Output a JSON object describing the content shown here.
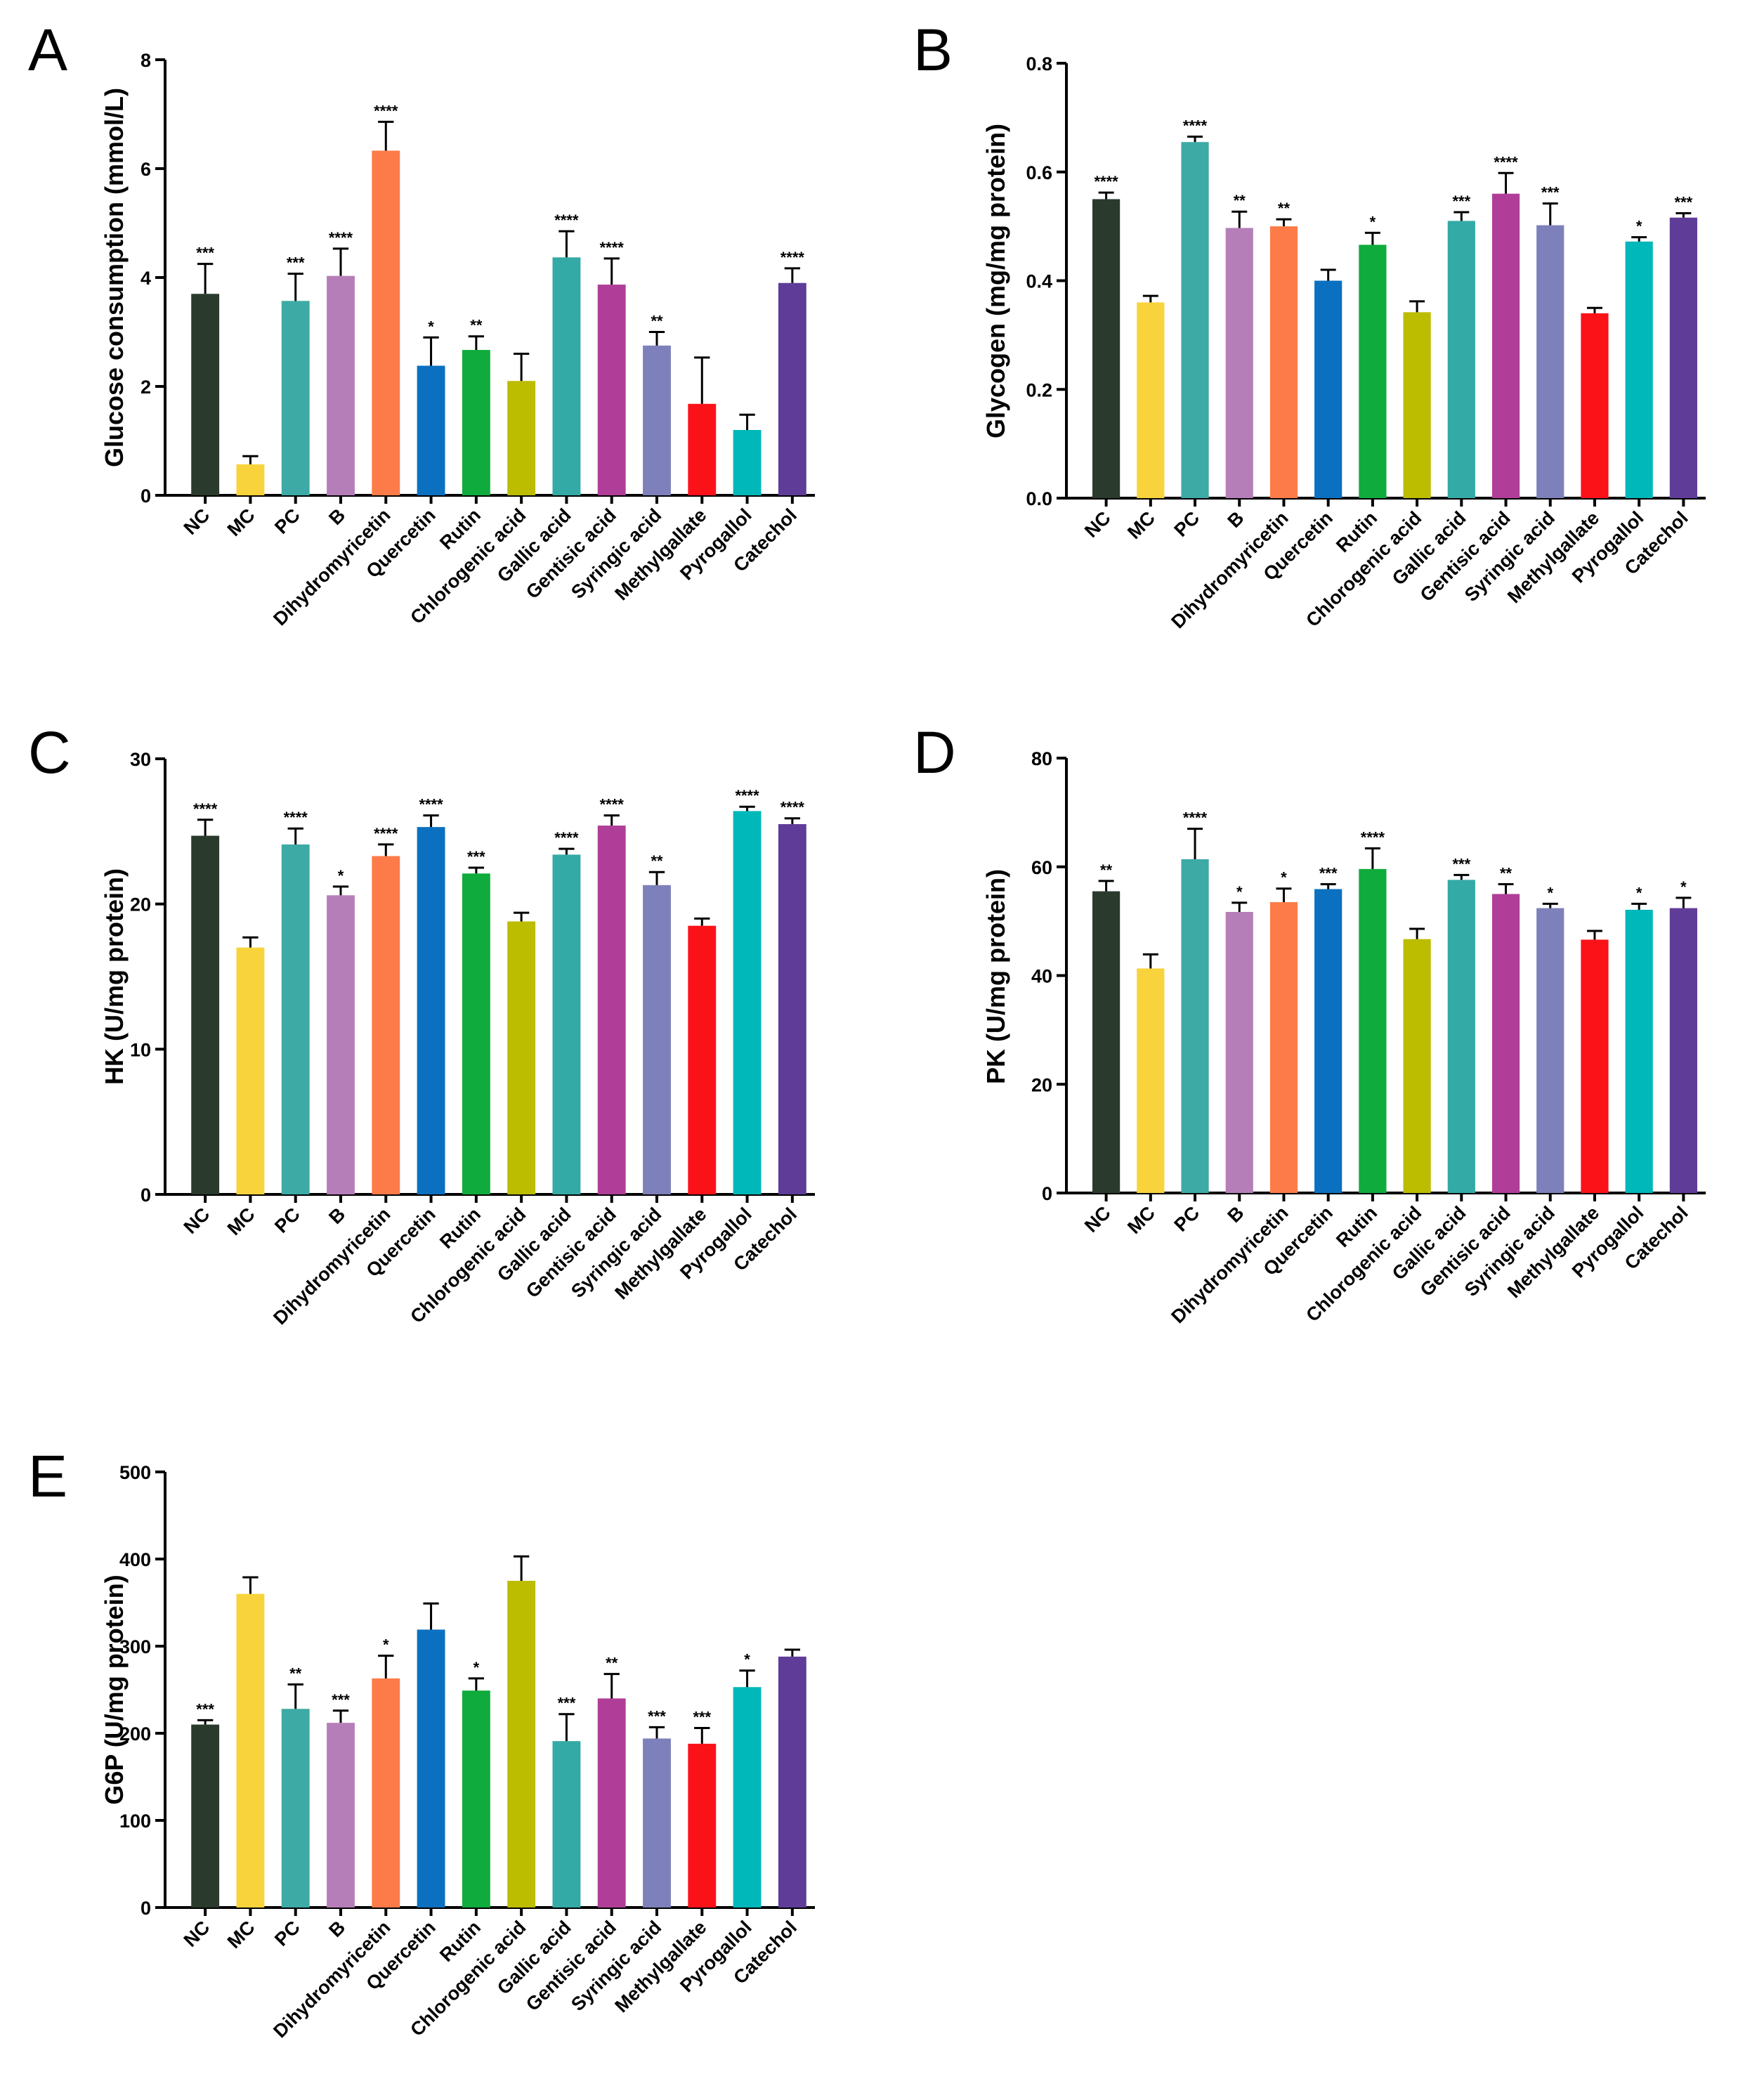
{
  "colors": {
    "NC": "#2a3a2c",
    "MC": "#f8d33c",
    "PC": "#3daaa6",
    "B": "#b67eb8",
    "Dihydromyricetin": "#fd7b48",
    "Quercetin": "#0b70c0",
    "Rutin": "#0fab3c",
    "Chlorogenic acid": "#bcbc00",
    "Gallic acid": "#34aaa6",
    "Gentisic acid": "#b03e98",
    "Syringic acid": "#7d80ba",
    "Methylgallate": "#fb1219",
    "Pyrogallol": "#00b7b9",
    "Catechol": "#603c99"
  },
  "chart_data": [
    {
      "panel": "A",
      "type": "bar",
      "ylabel": "Glucose consumption (mmol/L)",
      "ylim": [
        0,
        8
      ],
      "yticks": [
        "0",
        "2",
        "4",
        "6",
        "8"
      ],
      "categories": [
        "NC",
        "MC",
        "PC",
        "B",
        "Dihydromyricetin",
        "Quercetin",
        "Rutin",
        "Chlorogenic acid",
        "Gallic acid",
        "Gentisic acid",
        "Syringic acid",
        "Methylgallate",
        "Pyrogallol",
        "Catechol"
      ],
      "values": [
        3.7,
        0.57,
        3.57,
        4.03,
        6.33,
        2.38,
        2.67,
        2.1,
        4.37,
        3.87,
        2.75,
        1.68,
        1.2,
        3.9
      ],
      "errors": [
        0.55,
        0.15,
        0.5,
        0.5,
        0.53,
        0.52,
        0.25,
        0.5,
        0.48,
        0.48,
        0.25,
        0.85,
        0.28,
        0.27
      ],
      "significance": [
        "***",
        "",
        "***",
        "****",
        "****",
        "*",
        "**",
        "",
        "****",
        "****",
        "**",
        "",
        "",
        "****"
      ]
    },
    {
      "panel": "B",
      "type": "bar",
      "ylabel": "Glycogen (mg/mg protein)",
      "ylim": [
        0,
        0.8
      ],
      "yticks": [
        "0.0",
        "0.2",
        "0.4",
        "0.6",
        "0.8"
      ],
      "categories": [
        "NC",
        "MC",
        "PC",
        "B",
        "Dihydromyricetin",
        "Quercetin",
        "Rutin",
        "Chlorogenic acid",
        "Gallic acid",
        "Gentisic acid",
        "Syringic acid",
        "Methylgallate",
        "Pyrogallol",
        "Catechol"
      ],
      "values": [
        0.55,
        0.36,
        0.655,
        0.497,
        0.5,
        0.4,
        0.466,
        0.342,
        0.51,
        0.56,
        0.502,
        0.34,
        0.472,
        0.516
      ],
      "errors": [
        0.012,
        0.012,
        0.01,
        0.03,
        0.013,
        0.02,
        0.022,
        0.02,
        0.016,
        0.038,
        0.04,
        0.01,
        0.008,
        0.008
      ],
      "significance": [
        "****",
        "",
        "****",
        "**",
        "**",
        "",
        "*",
        "",
        "***",
        "****",
        "***",
        "",
        "*",
        "***"
      ]
    },
    {
      "panel": "C",
      "type": "bar",
      "ylabel": "HK (U/mg protein)",
      "ylim": [
        0,
        30
      ],
      "yticks": [
        "0",
        "10",
        "20",
        "30"
      ],
      "categories": [
        "NC",
        "MC",
        "PC",
        "B",
        "Dihydromyricetin",
        "Quercetin",
        "Rutin",
        "Chlorogenic acid",
        "Gallic acid",
        "Gentisic acid",
        "Syringic acid",
        "Methylgallate",
        "Pyrogallol",
        "Catechol"
      ],
      "values": [
        24.7,
        17.0,
        24.1,
        20.6,
        23.3,
        25.3,
        22.1,
        18.8,
        23.4,
        25.4,
        21.3,
        18.5,
        26.4,
        25.5
      ],
      "errors": [
        1.1,
        0.7,
        1.1,
        0.6,
        0.8,
        0.8,
        0.4,
        0.6,
        0.4,
        0.7,
        0.9,
        0.5,
        0.3,
        0.4
      ],
      "significance": [
        "****",
        "",
        "****",
        "*",
        "****",
        "****",
        "***",
        "",
        "****",
        "****",
        "**",
        "",
        "****",
        "****"
      ]
    },
    {
      "panel": "D",
      "type": "bar",
      "ylabel": "PK (U/mg protein)",
      "ylim": [
        0,
        80
      ],
      "yticks": [
        "0",
        "20",
        "40",
        "60",
        "80"
      ],
      "categories": [
        "NC",
        "MC",
        "PC",
        "B",
        "Dihydromyricetin",
        "Quercetin",
        "Rutin",
        "Chlorogenic acid",
        "Gallic acid",
        "Gentisic acid",
        "Syringic acid",
        "Methylgallate",
        "Pyrogallol",
        "Catechol"
      ],
      "values": [
        55.5,
        41.3,
        61.4,
        51.7,
        53.5,
        55.9,
        59.6,
        46.7,
        57.6,
        55.0,
        52.4,
        46.6,
        52.1,
        52.4
      ],
      "errors": [
        1.9,
        2.6,
        5.6,
        1.7,
        2.5,
        0.9,
        3.8,
        1.9,
        0.9,
        1.8,
        0.8,
        1.6,
        1.1,
        1.9
      ],
      "significance": [
        "**",
        "",
        "****",
        "*",
        "*",
        "***",
        "****",
        "",
        "***",
        "**",
        "*",
        "",
        "*",
        "*"
      ]
    },
    {
      "panel": "E",
      "type": "bar",
      "ylabel": "G6P (U/mg protein)",
      "ylim": [
        0,
        500
      ],
      "yticks": [
        "0",
        "100",
        "200",
        "300",
        "400",
        "500"
      ],
      "categories": [
        "NC",
        "MC",
        "PC",
        "B",
        "Dihydromyricetin",
        "Quercetin",
        "Rutin",
        "Chlorogenic acid",
        "Gallic acid",
        "Gentisic acid",
        "Syringic acid",
        "Methylgallate",
        "Pyrogallol",
        "Catechol"
      ],
      "values": [
        210,
        360,
        228,
        212,
        263,
        319,
        249,
        375,
        191,
        240,
        194,
        188,
        253,
        288
      ],
      "errors": [
        5,
        19,
        28,
        14,
        26,
        30,
        14,
        28,
        31,
        28,
        13,
        18,
        19,
        8
      ],
      "significance": [
        "***",
        "",
        "**",
        "***",
        "*",
        "",
        "*",
        "",
        "***",
        "**",
        "***",
        "***",
        "*",
        ""
      ]
    }
  ]
}
